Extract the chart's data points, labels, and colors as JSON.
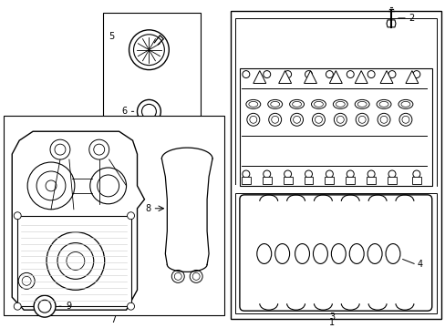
{
  "background_color": "#ffffff",
  "line_color": "#000000",
  "gray_color": "#888888",
  "light_gray": "#cccccc"
}
